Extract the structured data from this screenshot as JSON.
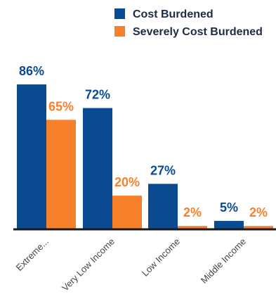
{
  "chart_data": {
    "type": "bar",
    "categories": [
      "Extreme...",
      "Very Low Income",
      "Low Income",
      "Middle Income"
    ],
    "series": [
      {
        "name": "Cost Burdened",
        "values": [
          86,
          72,
          27,
          5
        ],
        "labels": [
          "86%",
          "72%",
          "27%",
          "5%"
        ],
        "color": "#0a4a91"
      },
      {
        "name": "Severely Cost Burdened",
        "values": [
          65,
          20,
          2,
          2
        ],
        "labels": [
          "65%",
          "20%",
          "2%",
          "2%"
        ],
        "color": "#f7812a"
      }
    ],
    "ylim": [
      0,
      100
    ],
    "grid": false,
    "legend_position": "top-right",
    "axis_color": "#1a1a1a"
  }
}
